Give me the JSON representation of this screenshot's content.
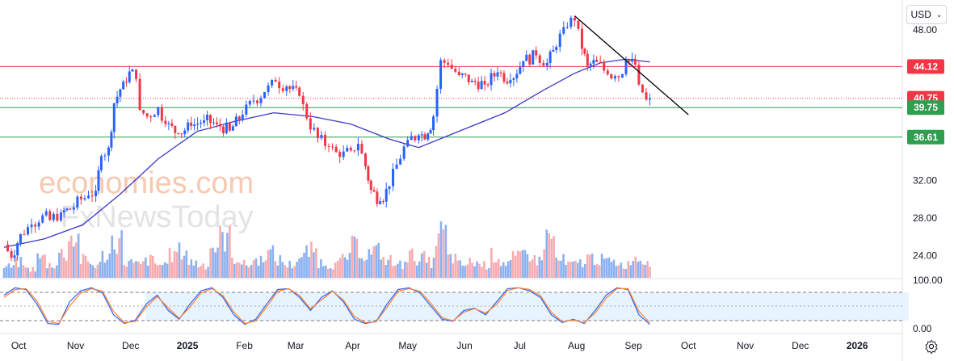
{
  "currency_selector": {
    "label": "USD",
    "chevron_icon": "chevron-down-icon"
  },
  "settings_icon": "gear-icon",
  "watermark": {
    "line1": "economies.com",
    "line2": "FxNewsToday"
  },
  "colors": {
    "up": "#2962ff",
    "down": "#f23645",
    "ma": "#3b37c9",
    "k_line": "#2962ff",
    "d_line": "#ff7f2a",
    "resistance": "#f23645",
    "support": "#2e9e4f",
    "trendline": "#000000"
  },
  "chart_data": [
    {
      "type": "candlestick",
      "x_tick_labels": [
        "Oct",
        "Nov",
        "Dec",
        "2025",
        "Feb",
        "Mar",
        "Apr",
        "May",
        "Jun",
        "Jul",
        "Aug",
        "Sep",
        "Oct",
        "Nov",
        "Dec",
        "2026"
      ],
      "y_tick_labels": [
        "48.00",
        "32.00",
        "28.00",
        "24.00"
      ],
      "ylim": [
        22.0,
        50.5
      ],
      "price_levels": [
        {
          "value": 44.12,
          "label": "44.12",
          "color": "#f23645",
          "style": "solid"
        },
        {
          "value": 40.75,
          "label": "40.75",
          "color": "#f23645",
          "style": "dotted"
        },
        {
          "value": 39.75,
          "label": "39.75",
          "color": "#2e9e4f",
          "style": "solid"
        },
        {
          "value": 36.61,
          "label": "36.61",
          "color": "#2e9e4f",
          "style": "solid"
        }
      ],
      "trendline": {
        "from": {
          "date": "2025-07-31",
          "price": 49.5
        },
        "to": {
          "date": "2025-10-01",
          "price": 39.0
        }
      },
      "series": [
        {
          "kind": "price",
          "ohlc_points": [
            [
              "2024-09-23",
              25.2
            ],
            [
              "2024-09-27",
              23.8
            ],
            [
              "2024-10-02",
              26.3
            ],
            [
              "2024-10-08",
              27.3
            ],
            [
              "2024-10-14",
              28.3
            ],
            [
              "2024-10-18",
              27.8
            ],
            [
              "2024-10-24",
              28.6
            ],
            [
              "2024-10-29",
              28.9
            ],
            [
              "2024-11-04",
              30.0
            ],
            [
              "2024-11-08",
              30.4
            ],
            [
              "2024-11-12",
              30.9
            ],
            [
              "2024-11-15",
              34.6
            ],
            [
              "2024-11-19",
              35.5
            ],
            [
              "2024-11-22",
              40.2
            ],
            [
              "2024-11-27",
              42.5
            ],
            [
              "2024-12-02",
              43.8
            ],
            [
              "2024-12-04",
              42.8
            ],
            [
              "2024-12-06",
              39.5
            ],
            [
              "2024-12-10",
              38.8
            ],
            [
              "2024-12-16",
              39.8
            ],
            [
              "2024-12-20",
              38.0
            ],
            [
              "2024-12-27",
              37.0
            ],
            [
              "2025-01-03",
              37.8
            ],
            [
              "2025-01-10",
              38.4
            ],
            [
              "2025-01-17",
              38.0
            ],
            [
              "2025-01-24",
              37.3
            ],
            [
              "2025-01-31",
              39.0
            ],
            [
              "2025-02-06",
              40.5
            ],
            [
              "2025-02-12",
              41.4
            ],
            [
              "2025-02-18",
              42.5
            ],
            [
              "2025-02-24",
              42.0
            ],
            [
              "2025-03-03",
              41.0
            ],
            [
              "2025-03-07",
              38.6
            ],
            [
              "2025-03-13",
              36.5
            ],
            [
              "2025-03-19",
              35.6
            ],
            [
              "2025-03-25",
              34.5
            ],
            [
              "2025-03-31",
              35.2
            ],
            [
              "2025-04-04",
              35.9
            ],
            [
              "2025-04-08",
              33.5
            ],
            [
              "2025-04-11",
              31.0
            ],
            [
              "2025-04-16",
              29.8
            ],
            [
              "2025-04-21",
              31.4
            ],
            [
              "2025-04-25",
              33.7
            ],
            [
              "2025-05-01",
              36.3
            ],
            [
              "2025-05-07",
              36.8
            ],
            [
              "2025-05-12",
              37.0
            ],
            [
              "2025-05-15",
              38.8
            ],
            [
              "2025-05-19",
              44.8
            ],
            [
              "2025-05-23",
              44.3
            ],
            [
              "2025-05-29",
              43.2
            ],
            [
              "2025-06-05",
              42.6
            ],
            [
              "2025-06-12",
              42.2
            ],
            [
              "2025-06-19",
              43.5
            ],
            [
              "2025-06-26",
              42.7
            ],
            [
              "2025-07-03",
              44.7
            ],
            [
              "2025-07-10",
              45.3
            ],
            [
              "2025-07-16",
              44.5
            ],
            [
              "2025-07-21",
              46.2
            ],
            [
              "2025-07-25",
              48.3
            ],
            [
              "2025-07-29",
              49.3
            ],
            [
              "2025-07-31",
              49.0
            ],
            [
              "2025-08-04",
              46.0
            ],
            [
              "2025-08-07",
              44.2
            ],
            [
              "2025-08-12",
              44.6
            ],
            [
              "2025-08-18",
              43.3
            ],
            [
              "2025-08-22",
              43.1
            ],
            [
              "2025-08-26",
              43.3
            ],
            [
              "2025-08-28",
              44.8
            ],
            [
              "2025-09-02",
              44.3
            ],
            [
              "2025-09-04",
              42.2
            ],
            [
              "2025-09-08",
              40.6
            ],
            [
              "2025-09-10",
              40.75
            ]
          ]
        },
        {
          "kind": "moving_average",
          "points": [
            [
              "2024-09-23",
              24.9
            ],
            [
              "2024-10-15",
              25.8
            ],
            [
              "2024-11-05",
              27.3
            ],
            [
              "2024-11-25",
              30.5
            ],
            [
              "2024-12-16",
              34.3
            ],
            [
              "2025-01-06",
              37.2
            ],
            [
              "2025-01-27",
              38.3
            ],
            [
              "2025-02-17",
              39.2
            ],
            [
              "2025-03-10",
              38.8
            ],
            [
              "2025-03-31",
              38.0
            ],
            [
              "2025-04-21",
              36.4
            ],
            [
              "2025-05-07",
              35.5
            ],
            [
              "2025-05-26",
              37.0
            ],
            [
              "2025-06-23",
              39.2
            ],
            [
              "2025-07-14",
              41.6
            ],
            [
              "2025-07-31",
              43.4
            ],
            [
              "2025-08-14",
              44.5
            ],
            [
              "2025-08-28",
              44.9
            ],
            [
              "2025-09-10",
              44.6
            ]
          ]
        }
      ]
    },
    {
      "type": "bar",
      "title": "",
      "values_relative": [
        0.25,
        0.35,
        0.2,
        0.45,
        0.3,
        0.55,
        0.9,
        0.4,
        0.3,
        0.5,
        0.85,
        0.35,
        0.3,
        0.4,
        0.3,
        0.5,
        0.6,
        0.35,
        0.3,
        0.7,
        0.9,
        0.45,
        0.3,
        0.4,
        0.55,
        0.4,
        0.3,
        0.45,
        0.6,
        0.35,
        0.3,
        0.4,
        0.7,
        0.55,
        0.6,
        0.4,
        0.3,
        0.5,
        0.45,
        0.35,
        1.0,
        0.45,
        0.3,
        0.35,
        0.3,
        0.5,
        0.35,
        0.45,
        0.55,
        0.4,
        0.9,
        0.4,
        0.3,
        0.35,
        0.45,
        0.4,
        0.35,
        0.3,
        0.45,
        0.4
      ]
    },
    {
      "type": "line",
      "y_tick_labels": [
        "100.00",
        "0.00"
      ],
      "ylim": [
        0,
        100
      ],
      "bands": [
        20,
        50,
        80
      ],
      "series": [
        {
          "name": "",
          "points": [
            [
              0,
              75
            ],
            [
              6,
              92
            ],
            [
              12,
              88
            ],
            [
              18,
              55
            ],
            [
              24,
              10
            ],
            [
              30,
              8
            ],
            [
              36,
              60
            ],
            [
              42,
              85
            ],
            [
              48,
              92
            ],
            [
              54,
              80
            ],
            [
              60,
              30
            ],
            [
              66,
              10
            ],
            [
              72,
              18
            ],
            [
              78,
              55
            ],
            [
              84,
              75
            ],
            [
              90,
              40
            ],
            [
              96,
              20
            ],
            [
              102,
              55
            ],
            [
              108,
              85
            ],
            [
              114,
              92
            ],
            [
              120,
              70
            ],
            [
              126,
              30
            ],
            [
              132,
              8
            ],
            [
              138,
              20
            ],
            [
              144,
              55
            ],
            [
              150,
              88
            ],
            [
              156,
              90
            ],
            [
              162,
              70
            ],
            [
              168,
              40
            ],
            [
              174,
              70
            ],
            [
              180,
              85
            ],
            [
              186,
              60
            ],
            [
              192,
              20
            ],
            [
              198,
              10
            ],
            [
              204,
              15
            ],
            [
              210,
              55
            ],
            [
              216,
              88
            ],
            [
              222,
              92
            ],
            [
              228,
              80
            ],
            [
              234,
              50
            ],
            [
              240,
              20
            ],
            [
              246,
              15
            ],
            [
              252,
              40
            ],
            [
              258,
              45
            ],
            [
              264,
              30
            ],
            [
              270,
              60
            ],
            [
              276,
              90
            ],
            [
              282,
              92
            ],
            [
              288,
              85
            ],
            [
              294,
              70
            ],
            [
              300,
              30
            ],
            [
              306,
              12
            ],
            [
              312,
              20
            ],
            [
              318,
              10
            ],
            [
              324,
              40
            ],
            [
              330,
              75
            ],
            [
              336,
              92
            ],
            [
              342,
              88
            ],
            [
              348,
              30
            ],
            [
              354,
              8
            ]
          ]
        },
        {
          "name": "",
          "points": [
            [
              0,
              70
            ],
            [
              6,
              88
            ],
            [
              12,
              90
            ],
            [
              18,
              62
            ],
            [
              24,
              15
            ],
            [
              30,
              10
            ],
            [
              36,
              50
            ],
            [
              42,
              80
            ],
            [
              48,
              90
            ],
            [
              54,
              84
            ],
            [
              60,
              38
            ],
            [
              66,
              12
            ],
            [
              72,
              15
            ],
            [
              78,
              48
            ],
            [
              84,
              72
            ],
            [
              90,
              46
            ],
            [
              96,
              22
            ],
            [
              102,
              48
            ],
            [
              108,
              80
            ],
            [
              114,
              90
            ],
            [
              120,
              74
            ],
            [
              126,
              36
            ],
            [
              132,
              10
            ],
            [
              138,
              16
            ],
            [
              144,
              48
            ],
            [
              150,
              84
            ],
            [
              156,
              90
            ],
            [
              162,
              74
            ],
            [
              168,
              44
            ],
            [
              174,
              64
            ],
            [
              180,
              84
            ],
            [
              186,
              64
            ],
            [
              192,
              26
            ],
            [
              198,
              12
            ],
            [
              204,
              14
            ],
            [
              210,
              48
            ],
            [
              216,
              84
            ],
            [
              222,
              90
            ],
            [
              228,
              84
            ],
            [
              234,
              56
            ],
            [
              240,
              24
            ],
            [
              246,
              16
            ],
            [
              252,
              36
            ],
            [
              258,
              44
            ],
            [
              264,
              34
            ],
            [
              270,
              54
            ],
            [
              276,
              86
            ],
            [
              282,
              92
            ],
            [
              288,
              88
            ],
            [
              294,
              74
            ],
            [
              300,
              36
            ],
            [
              306,
              14
            ],
            [
              312,
              18
            ],
            [
              318,
              12
            ],
            [
              324,
              34
            ],
            [
              330,
              68
            ],
            [
              336,
              90
            ],
            [
              342,
              90
            ],
            [
              348,
              38
            ],
            [
              354,
              12
            ]
          ]
        }
      ]
    }
  ]
}
